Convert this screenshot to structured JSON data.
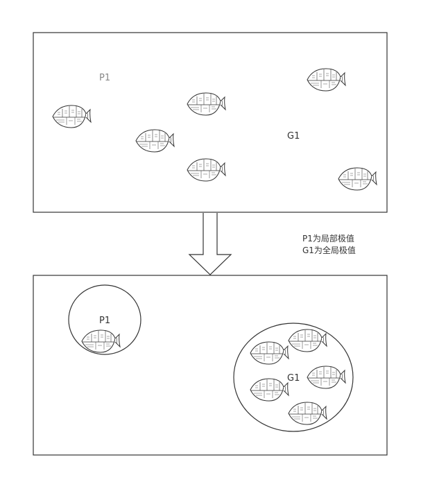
{
  "labels": {
    "p1": "P1",
    "g1": "G1"
  },
  "notes": {
    "line1": "P1为局部极值",
    "line2": "G1为全局极值"
  },
  "fish_icon": "fish-icon",
  "colors": {
    "stroke": "#333333",
    "background": "#ffffff"
  }
}
